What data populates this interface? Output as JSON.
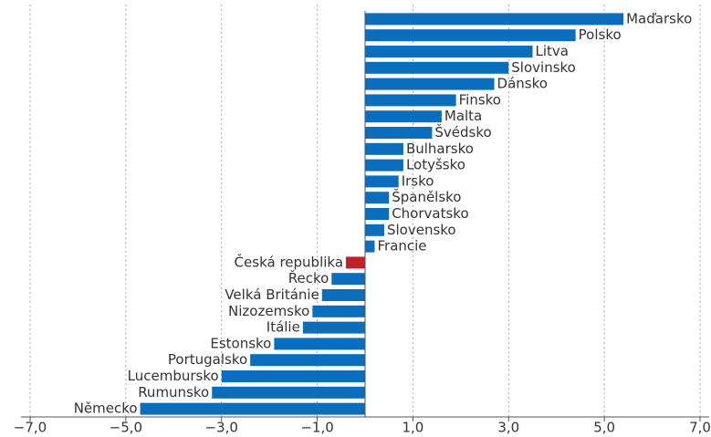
{
  "chart_data": {
    "type": "hbar",
    "categories": [
      "Maďarsko",
      "Polsko",
      "Litva",
      "Slovinsko",
      "Dánsko",
      "Finsko",
      "Malta",
      "Švédsko",
      "Bulharsko",
      "Lotyšsko",
      "Irsko",
      "Španělsko",
      "Chorvatsko",
      "Slovensko",
      "Francie",
      "Česká republika",
      "Řecko",
      "Velká Británie",
      "Nizozemsko",
      "Itálie",
      "Estonsko",
      "Portugalsko",
      "Lucembursko",
      "Rumunsko",
      "Německo"
    ],
    "values": [
      5.4,
      4.4,
      3.5,
      3.0,
      2.7,
      1.9,
      1.6,
      1.4,
      0.8,
      0.8,
      0.7,
      0.5,
      0.5,
      0.4,
      0.2,
      -0.4,
      -0.7,
      -0.9,
      -1.1,
      -1.3,
      -1.9,
      -2.4,
      -3.0,
      -3.2,
      -4.7
    ],
    "colors": [
      "#0a6ebd",
      "#0a6ebd",
      "#0a6ebd",
      "#0a6ebd",
      "#0a6ebd",
      "#0a6ebd",
      "#0a6ebd",
      "#0a6ebd",
      "#0a6ebd",
      "#0a6ebd",
      "#0a6ebd",
      "#0a6ebd",
      "#0a6ebd",
      "#0a6ebd",
      "#0a6ebd",
      "#c0202a",
      "#0a6ebd",
      "#0a6ebd",
      "#0a6ebd",
      "#0a6ebd",
      "#0a6ebd",
      "#0a6ebd",
      "#0a6ebd",
      "#0a6ebd",
      "#0a6ebd"
    ],
    "xlim": [
      -7,
      7
    ],
    "xticks": [
      {
        "value": -7,
        "label": "−7,0"
      },
      {
        "value": -5,
        "label": "−5,0"
      },
      {
        "value": -3,
        "label": "−3,0"
      },
      {
        "value": -1,
        "label": "−1,0"
      },
      {
        "value": 1,
        "label": "1,0"
      },
      {
        "value": 3,
        "label": "3,0"
      },
      {
        "value": 5,
        "label": "5,0"
      },
      {
        "value": 7,
        "label": "7,0"
      }
    ],
    "grid": true
  }
}
